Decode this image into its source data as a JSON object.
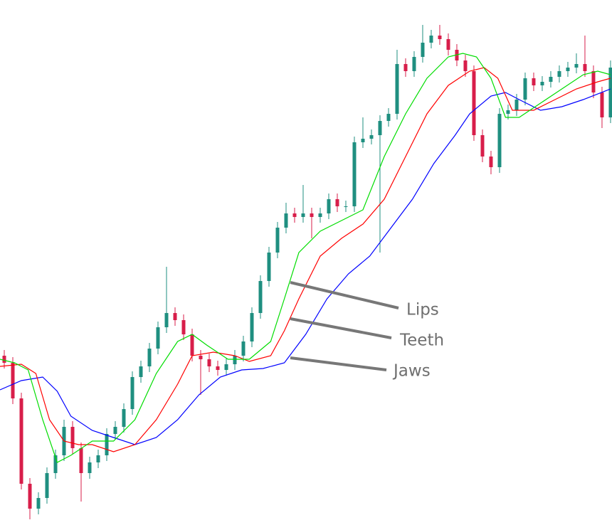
{
  "chart_data": {
    "type": "candlestick",
    "ylim": [
      0,
      745
    ],
    "xlim": [
      -0.5,
      71.17
    ],
    "up_color": "#1f8f80",
    "down_color": "#d81e4a",
    "open": [
      245,
      235,
      185,
      65,
      30,
      45,
      80,
      105,
      145,
      115,
      80,
      95,
      105,
      135,
      145,
      170,
      215,
      230,
      255,
      285,
      305,
      295,
      275,
      245,
      240,
      230,
      225,
      233,
      245,
      265,
      305,
      350,
      390,
      425,
      445,
      440,
      445,
      440,
      445,
      465,
      455,
      455,
      545,
      550,
      555,
      575,
      585,
      655,
      645,
      665,
      685,
      695,
      690,
      675,
      660,
      645,
      555,
      525,
      510,
      585,
      590,
      605,
      635,
      625,
      630,
      637,
      645,
      650,
      655,
      645,
      615,
      580
    ],
    "high": [
      253,
      243,
      193,
      73,
      53,
      88,
      113,
      155,
      153,
      123,
      103,
      113,
      143,
      153,
      178,
      223,
      238,
      263,
      293,
      370,
      313,
      303,
      283,
      253,
      248,
      238,
      241,
      253,
      273,
      313,
      358,
      398,
      433,
      460,
      453,
      485,
      453,
      453,
      473,
      473,
      463,
      553,
      580,
      563,
      583,
      593,
      675,
      663,
      673,
      710,
      703,
      710,
      698,
      683,
      668,
      653,
      563,
      533,
      593,
      598,
      613,
      643,
      643,
      638,
      645,
      653,
      658,
      670,
      695,
      653,
      623,
      660
    ],
    "low": [
      227,
      177,
      57,
      15,
      22,
      37,
      72,
      97,
      107,
      40,
      72,
      87,
      97,
      127,
      137,
      162,
      207,
      222,
      247,
      277,
      287,
      267,
      237,
      190,
      222,
      217,
      217,
      225,
      237,
      257,
      297,
      342,
      382,
      417,
      432,
      432,
      410,
      432,
      437,
      447,
      447,
      447,
      537,
      542,
      390,
      567,
      577,
      637,
      637,
      657,
      677,
      682,
      667,
      652,
      637,
      547,
      517,
      500,
      502,
      577,
      582,
      597,
      617,
      617,
      622,
      629,
      637,
      642,
      637,
      607,
      565,
      572
    ],
    "close": [
      235,
      185,
      65,
      30,
      45,
      80,
      105,
      145,
      115,
      80,
      95,
      105,
      135,
      145,
      170,
      215,
      230,
      255,
      285,
      305,
      295,
      275,
      245,
      240,
      230,
      225,
      233,
      245,
      265,
      305,
      350,
      390,
      425,
      445,
      440,
      445,
      440,
      445,
      465,
      455,
      455,
      545,
      550,
      555,
      575,
      585,
      655,
      645,
      665,
      685,
      695,
      690,
      675,
      660,
      645,
      555,
      525,
      510,
      585,
      590,
      605,
      635,
      625,
      630,
      637,
      645,
      650,
      655,
      645,
      615,
      580,
      650
    ],
    "series": [
      {
        "name": "Jaws",
        "color": "#0000ff",
        "x": [
          -0.5,
          2,
          4.5,
          6.2,
          7.8,
          10.3,
          12.8,
          15.3,
          17.8,
          20.3,
          22.8,
          25.3,
          27.8,
          30.3,
          32.8,
          35.3,
          37.8,
          40.3,
          42.8,
          45.3,
          47.8,
          50.3,
          52.8,
          54.5,
          57,
          58.7,
          60.3,
          62.8,
          65.3,
          67.8,
          71
        ],
        "values": [
          197,
          210,
          215,
          195,
          160,
          140,
          130,
          120,
          130,
          155,
          190,
          215,
          225,
          227,
          235,
          275,
          325,
          360,
          385,
          425,
          465,
          515,
          555,
          585,
          610,
          615,
          605,
          590,
          595,
          605,
          620
        ]
      },
      {
        "name": "Teeth",
        "color": "#ff0000",
        "x": [
          -0.5,
          2,
          3.7,
          5.3,
          7,
          8.7,
          10.3,
          12.8,
          15.3,
          17.8,
          20.3,
          22,
          24.5,
          27,
          28.7,
          31.2,
          32.8,
          34.5,
          37,
          39.5,
          42,
          44.5,
          47,
          49.5,
          52,
          54.5,
          56.2,
          57.8,
          59.5,
          62,
          64.5,
          67,
          69.5,
          71
        ],
        "values": [
          230,
          233,
          220,
          155,
          125,
          120,
          120,
          110,
          120,
          155,
          205,
          245,
          250,
          245,
          237,
          245,
          280,
          325,
          385,
          410,
          430,
          465,
          525,
          585,
          625,
          645,
          650,
          635,
          590,
          590,
          605,
          620,
          630,
          635
        ]
      },
      {
        "name": "Lips",
        "color": "#00dd00",
        "x": [
          -0.5,
          1.2,
          2.8,
          4.5,
          6.2,
          7.8,
          10.3,
          12.8,
          15.3,
          17.8,
          20.3,
          22,
          23.7,
          26.2,
          28.7,
          31.2,
          32.8,
          34.5,
          37,
          39.5,
          42,
          44.5,
          47,
          49.5,
          52,
          53.7,
          55.3,
          57,
          58.7,
          60.3,
          62.8,
          65.3,
          67.8,
          69.5,
          71
        ],
        "values": [
          240,
          235,
          225,
          155,
          95,
          105,
          125,
          125,
          155,
          220,
          265,
          275,
          260,
          240,
          240,
          265,
          325,
          390,
          420,
          435,
          450,
          525,
          585,
          635,
          665,
          670,
          665,
          635,
          580,
          580,
          600,
          620,
          640,
          645,
          640
        ]
      }
    ]
  }
}
